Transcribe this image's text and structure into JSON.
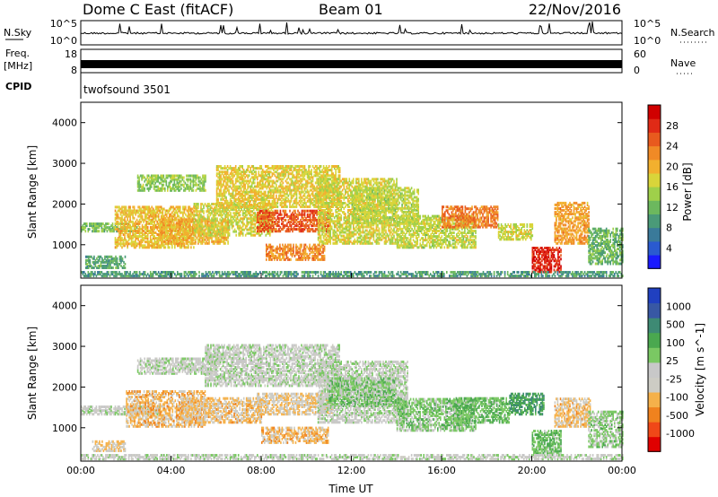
{
  "header": {
    "station": "Dome C East (fitACF)",
    "beam": "Beam 01",
    "date": "22/Nov/2016"
  },
  "status_panels": {
    "nsky": {
      "label": "N.Sky",
      "ticks": [
        "10^5",
        "10^0"
      ],
      "right_label": "N.Search",
      "right_ticks": [
        "10^5",
        "10^0"
      ]
    },
    "freq": {
      "label_line1": "Freq.",
      "label_line2": "[MHz]",
      "ticks": [
        "18",
        "8"
      ],
      "right_label": "Nave",
      "right_ticks": [
        "60",
        "0"
      ]
    },
    "cpid": {
      "label": "CPID",
      "value": "twofsound 3501"
    }
  },
  "chart_data": [
    {
      "type": "heatmap",
      "title": "",
      "xlabel": "",
      "ylabel": "Slant Range [km]",
      "xlim": [
        0,
        24
      ],
      "ylim": [
        180,
        4500
      ],
      "x_ticks": [
        "00:00",
        "04:00",
        "08:00",
        "12:00",
        "16:00",
        "20:00",
        "00:00"
      ],
      "y_ticks": [
        1000,
        2000,
        3000,
        4000
      ],
      "colorbar": {
        "label": "Power [dB]",
        "ticks": [
          "4",
          "8",
          "12",
          "16",
          "20",
          "24",
          "28"
        ],
        "range": [
          0,
          30
        ],
        "colors": [
          "#1a1aff",
          "#2a5ad0",
          "#3a7a9a",
          "#4a9a78",
          "#6cb85e",
          "#9fd04a",
          "#d9d53a",
          "#f2b02e",
          "#f08a26",
          "#e85a1e",
          "#e02a16",
          "#d00000"
        ]
      },
      "regions": [
        {
          "t0": 0.0,
          "t1": 2.5,
          "r0": 1300,
          "r1": 1500,
          "v": 12
        },
        {
          "t0": 0.2,
          "t1": 2.0,
          "r0": 400,
          "r1": 700,
          "v": 10
        },
        {
          "t0": 1.5,
          "t1": 5.0,
          "r0": 900,
          "r1": 1900,
          "v": 18
        },
        {
          "t0": 2.5,
          "t1": 5.5,
          "r0": 2300,
          "r1": 2700,
          "v": 13
        },
        {
          "t0": 3.5,
          "t1": 6.5,
          "r0": 1000,
          "r1": 1600,
          "v": 19
        },
        {
          "t0": 5.0,
          "t1": 8.5,
          "r0": 1200,
          "r1": 2000,
          "v": 16
        },
        {
          "t0": 6.0,
          "t1": 11.5,
          "r0": 1900,
          "r1": 2900,
          "v": 17
        },
        {
          "t0": 7.8,
          "t1": 11.0,
          "r0": 1300,
          "r1": 1800,
          "v": 24
        },
        {
          "t0": 8.2,
          "t1": 10.8,
          "r0": 600,
          "r1": 1000,
          "v": 21
        },
        {
          "t0": 10.5,
          "t1": 14.0,
          "r0": 1000,
          "r1": 2600,
          "v": 16
        },
        {
          "t0": 12.0,
          "t1": 15.0,
          "r0": 1500,
          "r1": 2400,
          "v": 15
        },
        {
          "t0": 14.0,
          "t1": 17.5,
          "r0": 900,
          "r1": 1700,
          "v": 15
        },
        {
          "t0": 16.0,
          "t1": 18.5,
          "r0": 1400,
          "r1": 1900,
          "v": 22
        },
        {
          "t0": 18.5,
          "t1": 20.0,
          "r0": 1100,
          "r1": 1500,
          "v": 16
        },
        {
          "t0": 20.0,
          "t1": 21.3,
          "r0": 300,
          "r1": 900,
          "v": 27
        },
        {
          "t0": 21.0,
          "t1": 22.5,
          "r0": 1000,
          "r1": 2000,
          "v": 20
        },
        {
          "t0": 22.5,
          "t1": 24.0,
          "r0": 500,
          "r1": 1400,
          "v": 11
        },
        {
          "t0": 0.0,
          "t1": 24.0,
          "r0": 200,
          "r1": 320,
          "v": 9
        }
      ]
    },
    {
      "type": "heatmap",
      "title": "",
      "xlabel": "Time UT",
      "ylabel": "Slant Range [km]",
      "xlim": [
        0,
        24
      ],
      "ylim": [
        180,
        4500
      ],
      "x_ticks": [
        "00:00",
        "04:00",
        "08:00",
        "12:00",
        "16:00",
        "20:00",
        "00:00"
      ],
      "y_ticks": [
        1000,
        2000,
        3000,
        4000
      ],
      "colorbar": {
        "label": "Velocity [m s^-1]",
        "ticks": [
          "1000",
          "500",
          "100",
          "25",
          "-25",
          "-100",
          "-500",
          "-1000"
        ],
        "range": [
          -1200,
          1200
        ],
        "colors": [
          "#e00000",
          "#f04818",
          "#f0821e",
          "#f5b14a",
          "#cdccc4",
          "#c8c8c8",
          "#7ac863",
          "#4aa84f",
          "#3e8a74",
          "#3858a4",
          "#2040c0"
        ]
      },
      "regions": [
        {
          "t0": 0.0,
          "t1": 3.5,
          "r0": 1300,
          "r1": 1500,
          "v": 0
        },
        {
          "t0": 0.5,
          "t1": 2.0,
          "r0": 400,
          "r1": 650,
          "v": -300
        },
        {
          "t0": 2.0,
          "t1": 5.5,
          "r0": 1000,
          "r1": 1900,
          "v": -400
        },
        {
          "t0": 2.5,
          "t1": 6.0,
          "r0": 2300,
          "r1": 2700,
          "v": 0
        },
        {
          "t0": 4.5,
          "t1": 8.0,
          "r0": 1100,
          "r1": 1700,
          "v": -350
        },
        {
          "t0": 5.5,
          "t1": 11.5,
          "r0": 2000,
          "r1": 3000,
          "v": 0
        },
        {
          "t0": 7.8,
          "t1": 11.2,
          "r0": 1300,
          "r1": 1800,
          "v": -300
        },
        {
          "t0": 8.0,
          "t1": 11.0,
          "r0": 600,
          "r1": 1000,
          "v": -400
        },
        {
          "t0": 10.5,
          "t1": 14.5,
          "r0": 1100,
          "r1": 2600,
          "v": 0
        },
        {
          "t0": 11.0,
          "t1": 14.0,
          "r0": 1500,
          "r1": 2200,
          "v": 200
        },
        {
          "t0": 14.0,
          "t1": 17.5,
          "r0": 900,
          "r1": 1700,
          "v": 200
        },
        {
          "t0": 16.5,
          "t1": 19.0,
          "r0": 1100,
          "r1": 1700,
          "v": 300
        },
        {
          "t0": 19.0,
          "t1": 20.5,
          "r0": 1300,
          "r1": 1800,
          "v": 500
        },
        {
          "t0": 20.0,
          "t1": 21.3,
          "r0": 300,
          "r1": 900,
          "v": 300
        },
        {
          "t0": 21.0,
          "t1": 22.6,
          "r0": 1000,
          "r1": 1700,
          "v": -350
        },
        {
          "t0": 22.5,
          "t1": 24.0,
          "r0": 500,
          "r1": 1400,
          "v": 150
        },
        {
          "t0": 0.0,
          "t1": 24.0,
          "r0": 200,
          "r1": 320,
          "v": 0
        }
      ]
    }
  ]
}
